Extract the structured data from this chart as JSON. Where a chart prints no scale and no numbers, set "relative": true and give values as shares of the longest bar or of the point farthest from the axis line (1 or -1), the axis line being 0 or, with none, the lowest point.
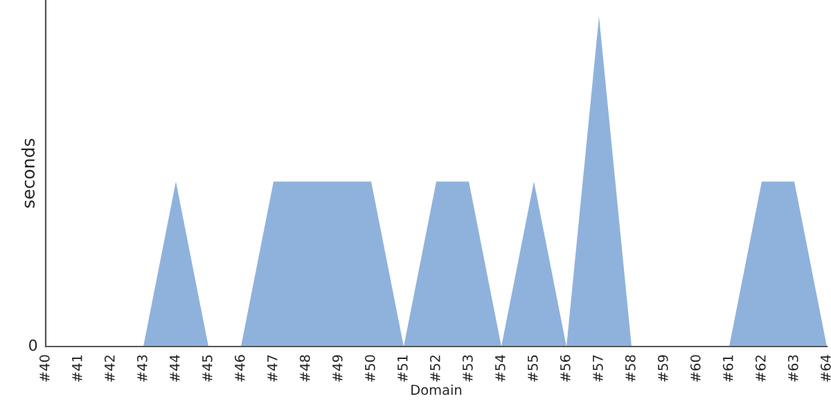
{
  "chart_data": {
    "type": "area",
    "relative": true,
    "xlabel": "Domain",
    "ylabel": "seconds",
    "categories": [
      "#40",
      "#41",
      "#42",
      "#43",
      "#44",
      "#45",
      "#46",
      "#47",
      "#48",
      "#49",
      "#50",
      "#51",
      "#52",
      "#53",
      "#54",
      "#55",
      "#56",
      "#57",
      "#58",
      "#59",
      "#60",
      "#61",
      "#62",
      "#63",
      "#64"
    ],
    "series": [
      {
        "color": "#8fb2dc",
        "values": [
          0,
          0,
          0,
          0,
          0.5,
          0,
          0,
          0.5,
          0.5,
          0.5,
          0.5,
          0,
          0.5,
          0.5,
          0,
          0.5,
          0,
          1,
          0,
          0,
          0,
          0,
          0.5,
          0.5,
          0
        ]
      }
    ],
    "annotations": [
      "0"
    ],
    "grid": false,
    "legend": false
  }
}
